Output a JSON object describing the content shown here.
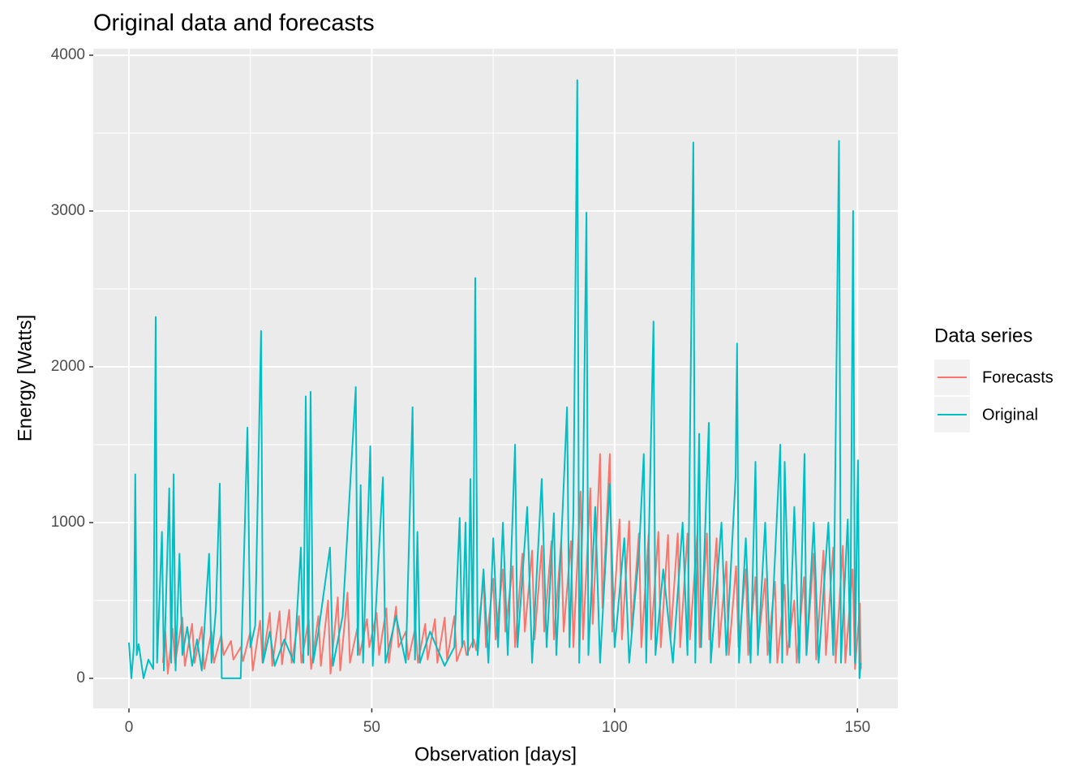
{
  "chart_data": {
    "type": "line",
    "title": "Original data and forecasts",
    "x_label": "Observation [days]",
    "y_label": "Energy [Watts]",
    "legend_title": "Data series",
    "legend": "right",
    "grid": true,
    "xlim": [
      -7.35,
      158.3
    ],
    "ylim": [
      -193,
      4042
    ],
    "xticks": [
      0,
      50,
      100,
      150
    ],
    "yticks": [
      0,
      1000,
      2000,
      3000,
      4000
    ],
    "minor_xticks": [
      25,
      75,
      125
    ],
    "minor_yticks": [
      500,
      1500,
      2500,
      3500
    ],
    "series": [
      {
        "name": "Forecasts",
        "color": "#f8766d",
        "x": [
          7,
          7.5,
          8,
          9,
          9.5,
          11,
          11.5,
          13,
          13.5,
          15,
          15.5,
          17,
          17.5,
          19,
          19.5,
          21,
          21.5,
          23,
          23.5,
          25,
          25.5,
          27,
          27.5,
          29,
          29.5,
          31,
          31.5,
          33,
          33.5,
          35,
          35.5,
          37,
          37.5,
          39,
          39.5,
          41,
          41.5,
          43,
          43.5,
          45,
          45.5,
          47,
          47.5,
          49,
          49.5,
          51,
          51.5,
          53,
          53.5,
          55,
          55.5,
          57,
          57.5,
          59,
          59.5,
          61,
          61.5,
          63,
          63.5,
          65,
          65.5,
          67,
          67.5,
          69,
          69.5,
          71,
          71.5,
          73,
          73.5,
          75,
          75.5,
          77,
          77.5,
          79,
          79.5,
          81,
          81.5,
          83,
          83.5,
          85,
          85.5,
          87,
          87.5,
          89,
          89.5,
          91,
          91.5,
          93,
          93.5,
          95,
          95.5,
          97,
          97.5,
          99,
          99.5,
          101,
          101.5,
          103,
          103.5,
          105,
          105.5,
          107,
          107.5,
          109,
          109.5,
          111,
          111.5,
          113,
          113.5,
          115,
          115.5,
          117,
          117.5,
          119,
          119.5,
          121,
          121.5,
          123,
          123.5,
          125,
          125.5,
          127,
          127.5,
          129,
          129.5,
          131,
          131.5,
          133,
          133.5,
          135,
          135.5,
          137,
          137.5,
          139,
          139.5,
          141,
          141.5,
          143,
          143.5,
          145,
          145.5,
          147,
          147.5,
          149,
          149.5,
          150.5,
          150.7
        ],
        "values": [
          100,
          300,
          30,
          320,
          100,
          390,
          80,
          350,
          100,
          330,
          60,
          300,
          100,
          280,
          150,
          240,
          120,
          200,
          110,
          300,
          50,
          370,
          100,
          420,
          80,
          430,
          90,
          440,
          100,
          400,
          100,
          380,
          60,
          400,
          80,
          500,
          30,
          520,
          50,
          550,
          100,
          320,
          150,
          380,
          200,
          420,
          150,
          450,
          100,
          460,
          200,
          300,
          120,
          330,
          100,
          350,
          120,
          380,
          100,
          390,
          120,
          400,
          110,
          240,
          150,
          250,
          180,
          640,
          200,
          640,
          250,
          700,
          300,
          720,
          200,
          800,
          300,
          820,
          250,
          850,
          300,
          880,
          250,
          880,
          300,
          880,
          200,
          1200,
          250,
          1220,
          350,
          1440,
          450,
          1440,
          300,
          1020,
          250,
          1010,
          300,
          930,
          200,
          920,
          250,
          940,
          200,
          920,
          250,
          930,
          200,
          930,
          250,
          920,
          200,
          930,
          250,
          900,
          200,
          750,
          150,
          720,
          200,
          700,
          150,
          650,
          200,
          640,
          150,
          620,
          100,
          600,
          150,
          500,
          100,
          650,
          150,
          800,
          120,
          820,
          150,
          840,
          100,
          850,
          100,
          700,
          60,
          480,
          60
        ]
      },
      {
        "name": "Original",
        "color": "#00bfc4",
        "x": [
          0,
          0.5,
          1,
          1.3,
          1.6,
          2,
          3,
          4,
          5,
          5.5,
          5.8,
          6.8,
          7.2,
          8.3,
          8.7,
          9.2,
          9.6,
          10.4,
          11,
          12,
          13,
          14,
          15,
          16.5,
          17,
          17.9,
          18.7,
          19.1,
          23,
          24.4,
          25,
          26,
          27.2,
          27.6,
          29,
          30,
          32,
          34,
          35.4,
          35.9,
          36.4,
          36.9,
          37.4,
          37.9,
          39,
          41.4,
          42,
          44,
          46.7,
          47.1,
          47.7,
          48.2,
          49.7,
          50.2,
          52.3,
          52.8,
          55,
          57,
          58.4,
          58.9,
          59.4,
          59.9,
          62,
          65,
          67,
          68.1,
          68.6,
          69.3,
          69.8,
          70.3,
          70.8,
          71.3,
          71.8,
          73,
          74,
          75,
          76,
          77,
          78,
          79.5,
          80,
          82,
          83,
          85,
          86,
          87.5,
          88,
          90.2,
          90.7,
          91.5,
          92.3,
          92.7,
          93.5,
          94.2,
          94.6,
          96,
          97,
          99,
          100,
          102,
          103,
          105,
          106,
          106.5,
          108,
          108.4,
          110,
          112,
          114,
          115,
          116.2,
          116.6,
          117.4,
          117.8,
          119.4,
          119.8,
          122,
          123,
          124.9,
          125.2,
          125.6,
          127,
          128,
          129,
          129.5,
          131,
          132,
          134.1,
          134.5,
          135,
          136,
          137,
          138,
          139.1,
          139.5,
          141,
          142,
          144,
          145,
          146.2,
          146.6,
          148,
          148.5,
          149.1,
          149.5,
          150.1,
          150.4,
          150.7
        ],
        "values": [
          230,
          0,
          200,
          1310,
          150,
          220,
          0,
          120,
          60,
          2320,
          100,
          940,
          50,
          1220,
          100,
          1310,
          50,
          800,
          150,
          330,
          80,
          250,
          50,
          800,
          100,
          440,
          1250,
          0,
          0,
          1610,
          200,
          340,
          2230,
          100,
          300,
          80,
          250,
          100,
          840,
          100,
          1810,
          150,
          1840,
          100,
          300,
          840,
          80,
          400,
          1870,
          150,
          1240,
          100,
          1490,
          80,
          1290,
          100,
          400,
          100,
          1740,
          120,
          940,
          100,
          300,
          80,
          200,
          1030,
          200,
          1000,
          150,
          1280,
          200,
          2570,
          150,
          700,
          100,
          900,
          200,
          1000,
          150,
          1500,
          200,
          1100,
          100,
          1280,
          200,
          1060,
          150,
          1740,
          200,
          1050,
          3840,
          100,
          1200,
          2990,
          150,
          1100,
          100,
          1250,
          200,
          900,
          100,
          800,
          1440,
          100,
          2290,
          150,
          700,
          100,
          1000,
          150,
          3440,
          100,
          1570,
          200,
          1640,
          100,
          1000,
          150,
          1290,
          2150,
          100,
          900,
          100,
          1390,
          150,
          1000,
          100,
          1500,
          100,
          1390,
          200,
          1100,
          100,
          1440,
          150,
          1000,
          100,
          1000,
          150,
          3450,
          100,
          1020,
          150,
          3000,
          100,
          1400,
          0,
          100
        ]
      }
    ]
  }
}
